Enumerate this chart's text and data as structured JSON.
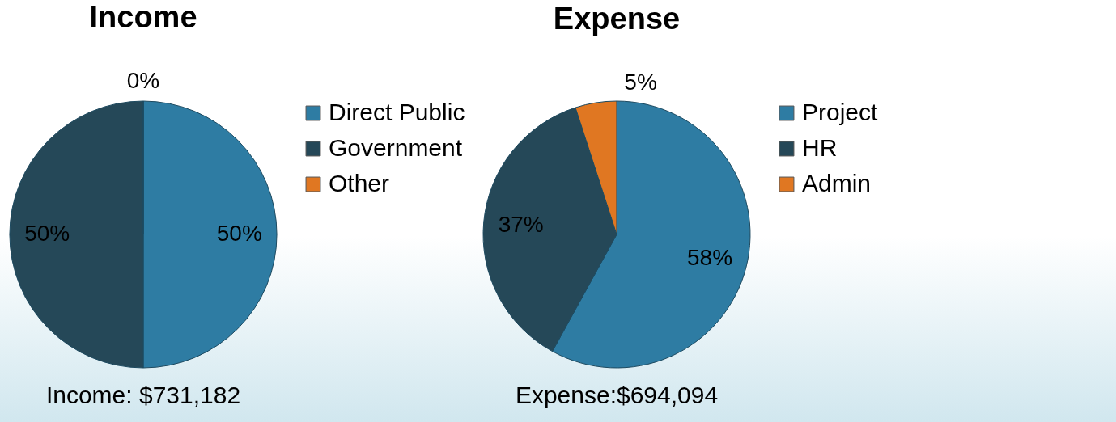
{
  "chart_data": [
    {
      "type": "pie",
      "title": "Income",
      "categories": [
        "Direct Public",
        "Government",
        "Other"
      ],
      "values": [
        50,
        50,
        0
      ],
      "value_labels": [
        "50%",
        "50%",
        "0%"
      ],
      "colors": [
        "#2e7ca3",
        "#254858",
        "#e07722"
      ],
      "legend": "right",
      "annotations": [
        "Income: $731,182"
      ]
    },
    {
      "type": "pie",
      "title": "Expense",
      "categories": [
        "Project",
        "HR",
        "Admin"
      ],
      "values": [
        58,
        37,
        5
      ],
      "value_labels": [
        "58%",
        "37%",
        "5%"
      ],
      "colors": [
        "#2e7ca3",
        "#254858",
        "#e07722"
      ],
      "legend": "right",
      "annotations": [
        "Expense:$694,094"
      ]
    }
  ]
}
